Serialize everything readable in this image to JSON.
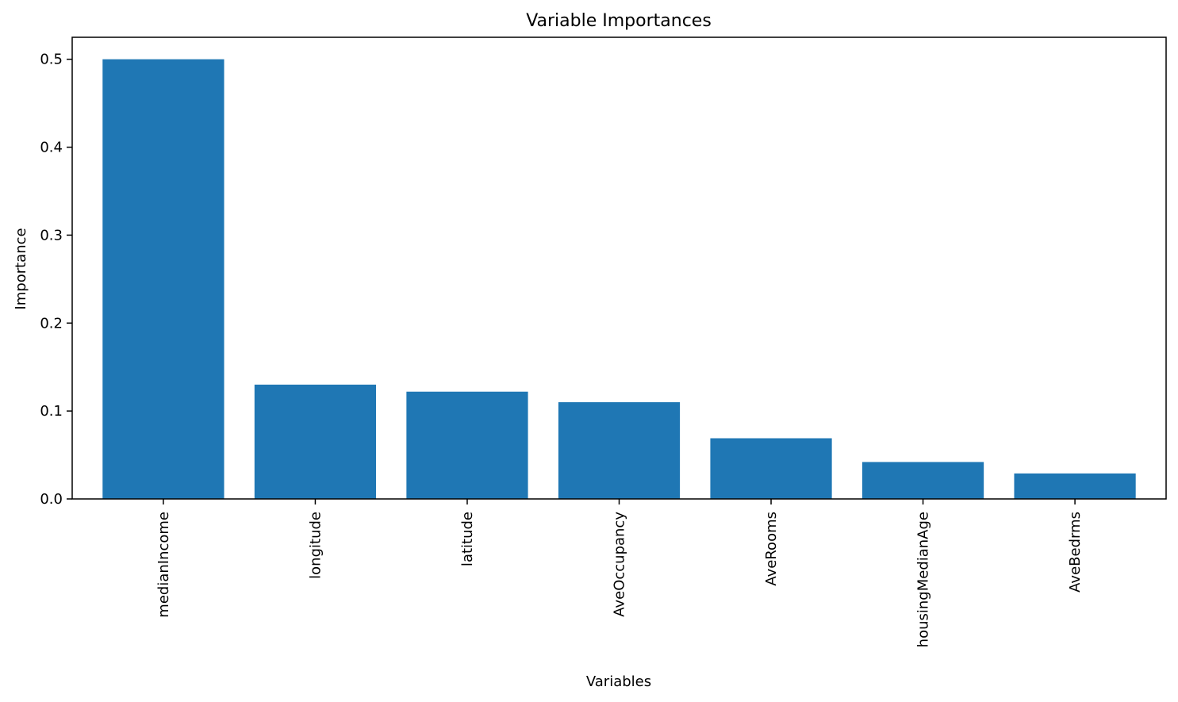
{
  "chart_data": {
    "type": "bar",
    "title": "Variable Importances",
    "xlabel": "Variables",
    "ylabel": "Importance",
    "categories": [
      "medianIncome",
      "longitude",
      "latitude",
      "AveOccupancy",
      "AveRooms",
      "housingMedianAge",
      "AveBedrms"
    ],
    "values": [
      0.5,
      0.13,
      0.122,
      0.11,
      0.069,
      0.042,
      0.029
    ],
    "yticks": [
      0.0,
      0.1,
      0.2,
      0.3,
      0.4,
      0.5
    ],
    "ytick_labels": [
      "0.0",
      "0.1",
      "0.2",
      "0.3",
      "0.4",
      "0.5"
    ],
    "ylim": [
      0,
      0.525
    ],
    "bar_color": "#1f77b4",
    "grid": false,
    "legend": false
  }
}
